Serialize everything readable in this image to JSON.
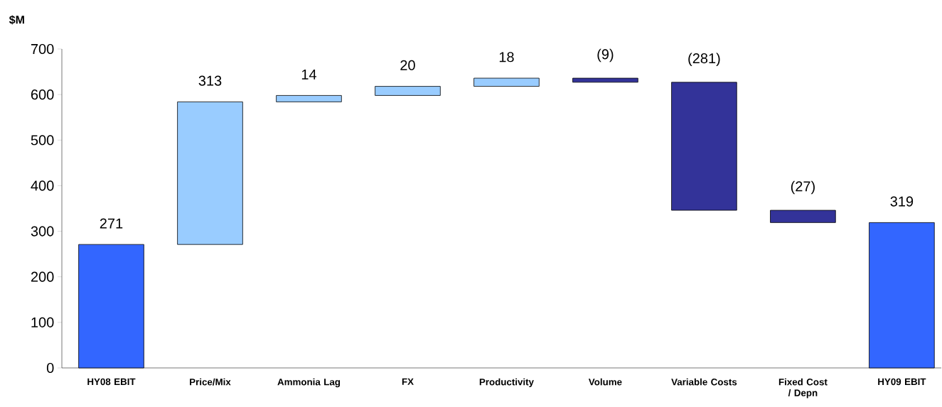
{
  "chart_data": {
    "type": "bar",
    "ylabel": "$M",
    "categories": [
      "HY08 EBIT",
      "Price/Mix",
      "Ammonia Lag",
      "FX",
      "Productivity",
      "Volume",
      "Variable Costs",
      "Fixed Cost / Depn",
      "HY09 EBIT"
    ],
    "values": [
      271,
      313,
      14,
      20,
      18,
      -9,
      -281,
      -27,
      319
    ],
    "base": [
      0,
      271,
      584,
      598,
      618,
      636,
      627,
      346,
      0
    ],
    "colors": [
      "#3366ff",
      "#99ccff",
      "#99ccff",
      "#99ccff",
      "#99ccff",
      "#333399",
      "#333399",
      "#333399",
      "#3366ff"
    ],
    "value_labels": [
      "271",
      "313",
      "14",
      "20",
      "18",
      "(9)",
      "(281)",
      "(27)",
      "319"
    ],
    "ylim": [
      0,
      700
    ],
    "yticks": [
      0,
      100,
      200,
      300,
      400,
      500,
      600,
      700
    ],
    "grid": false
  }
}
